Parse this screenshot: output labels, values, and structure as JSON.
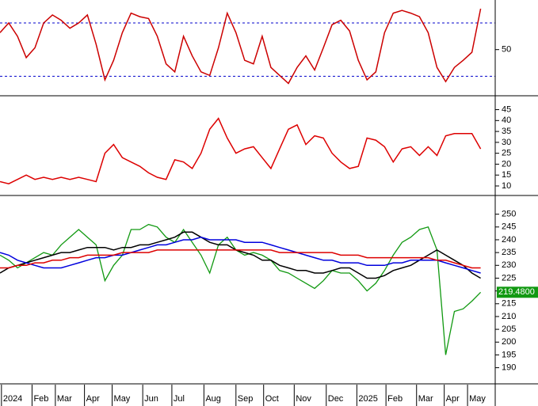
{
  "chart_data": [
    {
      "type": "line",
      "xlim": [
        0,
        340
      ],
      "ylim": [
        -1,
        104
      ],
      "yticks": [
        50
      ],
      "levels": [
        20,
        80
      ],
      "level_color": "#0000cc",
      "x": [
        0,
        6,
        12,
        18,
        24,
        30,
        36,
        42,
        48,
        54,
        60,
        66,
        72,
        78,
        84,
        90,
        96,
        102,
        108,
        114,
        120,
        126,
        132,
        138,
        144,
        150,
        156,
        162,
        168,
        174,
        180,
        186,
        192,
        198,
        204,
        210,
        216,
        222,
        228,
        234,
        240,
        246,
        252,
        258,
        264,
        270,
        276,
        282,
        288,
        294,
        300,
        306,
        312,
        318,
        324,
        330
      ],
      "series": [
        {
          "color": "#cc0000",
          "values": [
            69,
            80,
            65,
            41,
            52,
            80,
            89,
            83,
            74,
            80,
            89,
            56,
            16,
            38,
            69,
            91,
            87,
            85,
            65,
            34,
            25,
            65,
            43,
            25,
            21,
            52,
            91,
            69,
            38,
            34,
            65,
            30,
            21,
            12,
            30,
            43,
            27,
            52,
            78,
            83,
            71,
            38,
            16,
            25,
            69,
            91,
            94,
            91,
            87,
            69,
            30,
            14,
            30,
            38,
            47,
            96
          ]
        }
      ]
    },
    {
      "type": "line",
      "xlim": [
        0,
        340
      ],
      "ylim": [
        6,
        51
      ],
      "yticks": [
        10,
        15,
        20,
        25,
        30,
        35,
        40,
        45
      ],
      "x": [
        0,
        6,
        12,
        18,
        24,
        30,
        36,
        42,
        48,
        54,
        60,
        66,
        72,
        78,
        84,
        90,
        96,
        102,
        108,
        114,
        120,
        126,
        132,
        138,
        144,
        150,
        156,
        162,
        168,
        174,
        180,
        186,
        192,
        198,
        204,
        210,
        216,
        222,
        228,
        234,
        240,
        246,
        252,
        258,
        264,
        270,
        276,
        282,
        288,
        294,
        300,
        306,
        312,
        318,
        324,
        330
      ],
      "series": [
        {
          "color": "#dd0000",
          "values": [
            12,
            11,
            13,
            15,
            13,
            14,
            13,
            14,
            13,
            14,
            13,
            12,
            25,
            29,
            23,
            21,
            19,
            16,
            14,
            13,
            22,
            21,
            18,
            25,
            36,
            41,
            32,
            25,
            27,
            28,
            23,
            18,
            27,
            36,
            38,
            29,
            33,
            32,
            25,
            21,
            18,
            19,
            32,
            31,
            28,
            21,
            27,
            28,
            24,
            28,
            24,
            33,
            34,
            34,
            34,
            27
          ]
        }
      ]
    },
    {
      "type": "line",
      "xlim": [
        0,
        340
      ],
      "ylim": [
        184,
        257
      ],
      "yticks": [
        190,
        195,
        200,
        205,
        210,
        215,
        220,
        225,
        230,
        235,
        240,
        245,
        250
      ],
      "last_price": {
        "value": 219.48,
        "label": "219.4800"
      },
      "xticks": [
        {
          "value": 1,
          "label": "2024"
        },
        {
          "value": 22,
          "label": "Feb"
        },
        {
          "value": 38,
          "label": "Mar"
        },
        {
          "value": 58,
          "label": "Apr"
        },
        {
          "value": 77,
          "label": "May"
        },
        {
          "value": 98,
          "label": "Jun"
        },
        {
          "value": 118,
          "label": "Jul"
        },
        {
          "value": 140,
          "label": "Aug"
        },
        {
          "value": 162,
          "label": "Sep"
        },
        {
          "value": 181,
          "label": "Oct"
        },
        {
          "value": 202,
          "label": "Nov"
        },
        {
          "value": 224,
          "label": "Dec"
        },
        {
          "value": 245,
          "label": "2025"
        },
        {
          "value": 265,
          "label": "Feb"
        },
        {
          "value": 286,
          "label": "Mar"
        },
        {
          "value": 305,
          "label": "Apr"
        },
        {
          "value": 321,
          "label": "May"
        }
      ],
      "x": [
        0,
        6,
        12,
        18,
        24,
        30,
        36,
        42,
        48,
        54,
        60,
        66,
        72,
        78,
        84,
        90,
        96,
        102,
        108,
        114,
        120,
        126,
        132,
        138,
        144,
        150,
        156,
        162,
        168,
        174,
        180,
        186,
        192,
        198,
        204,
        210,
        216,
        222,
        228,
        234,
        240,
        246,
        252,
        258,
        264,
        270,
        276,
        282,
        288,
        294,
        300,
        306,
        312,
        318,
        324,
        330
      ],
      "series": [
        {
          "color": "#119911",
          "values": [
            234,
            232,
            229,
            231,
            233,
            235,
            234,
            238,
            241,
            244,
            241,
            238,
            224,
            230,
            234,
            244,
            244,
            246,
            245,
            241,
            239,
            244,
            239,
            234,
            227,
            238,
            241,
            236,
            234,
            235,
            234,
            232,
            228,
            227,
            225,
            223,
            221,
            224,
            228,
            227,
            227,
            224,
            220,
            223,
            228,
            234,
            239,
            241,
            244,
            245,
            236,
            195,
            212,
            213,
            216,
            219.48
          ]
        },
        {
          "color": "#000000",
          "values": [
            227,
            229,
            230,
            231,
            232,
            233,
            234,
            235,
            235,
            236,
            237,
            237,
            237,
            236,
            237,
            237,
            238,
            238,
            239,
            240,
            241,
            243,
            243,
            241,
            239,
            238,
            238,
            236,
            235,
            234,
            232,
            232,
            230,
            229,
            228,
            228,
            227,
            227,
            228,
            229,
            229,
            227,
            225,
            225,
            226,
            228,
            229,
            230,
            232,
            234,
            236,
            234,
            232,
            230,
            227,
            225
          ]
        },
        {
          "color": "#0000dd",
          "values": [
            235,
            234,
            232,
            231,
            230,
            229,
            229,
            229,
            230,
            231,
            232,
            233,
            233,
            234,
            234,
            235,
            236,
            237,
            238,
            238,
            239,
            240,
            240,
            241,
            240,
            240,
            240,
            240,
            239,
            239,
            239,
            238,
            237,
            236,
            235,
            234,
            233,
            232,
            232,
            231,
            231,
            231,
            230,
            230,
            230,
            231,
            231,
            232,
            232,
            232,
            232,
            231,
            230,
            229,
            228,
            227
          ]
        },
        {
          "color": "#dd0000",
          "values": [
            229,
            229,
            230,
            230,
            231,
            231,
            232,
            232,
            233,
            233,
            234,
            234,
            234,
            234,
            235,
            235,
            235,
            235,
            236,
            236,
            236,
            236,
            236,
            236,
            236,
            236,
            236,
            236,
            236,
            236,
            236,
            236,
            235,
            235,
            235,
            235,
            235,
            235,
            235,
            234,
            234,
            234,
            233,
            233,
            233,
            233,
            233,
            233,
            233,
            233,
            232,
            232,
            231,
            230,
            229,
            229
          ]
        }
      ]
    }
  ]
}
